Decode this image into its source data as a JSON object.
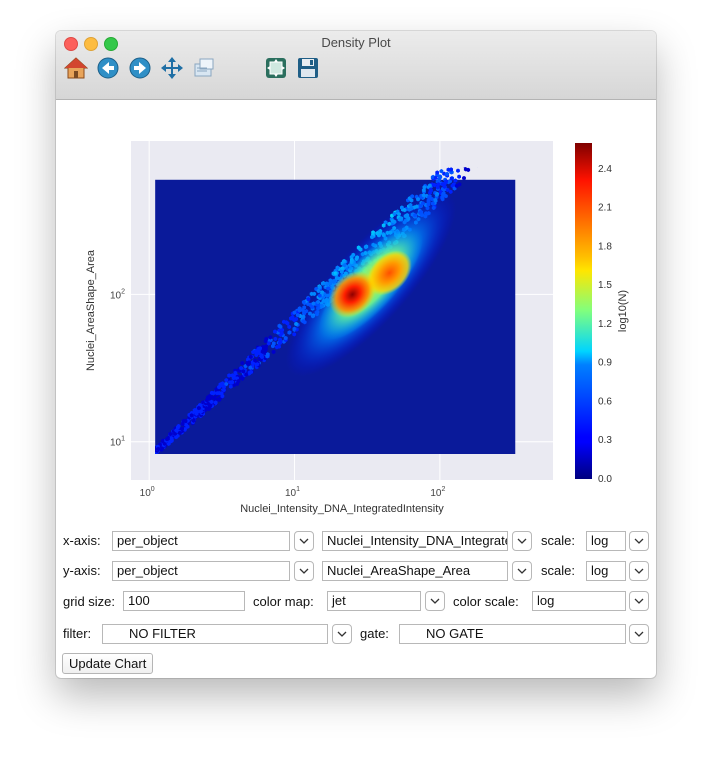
{
  "window": {
    "title": "Density Plot"
  },
  "toolbar": {
    "icons": [
      "home-icon",
      "back-icon",
      "forward-icon",
      "pan-icon",
      "zoom-icon",
      "configure-subplots-icon",
      "save-icon"
    ]
  },
  "chart_data": {
    "type": "heatmap",
    "plot_kind": "hexbin",
    "xlabel": "Nuclei_Intensity_DNA_IntegratedIntensity",
    "ylabel": "Nuclei_AreaShape_Area",
    "xscale": "log",
    "yscale": "log",
    "xlim": [
      0.75,
      600
    ],
    "ylim": [
      5.5,
      1100
    ],
    "x_tick_labels": [
      {
        "value": 1,
        "base": "10",
        "exp": "0"
      },
      {
        "value": 10,
        "base": "10",
        "exp": "1"
      },
      {
        "value": 100,
        "base": "10",
        "exp": "2"
      }
    ],
    "y_tick_labels": [
      {
        "value": 10,
        "base": "10",
        "exp": "1"
      },
      {
        "value": 100,
        "base": "10",
        "exp": "2"
      }
    ],
    "grid": true,
    "colormap": "jet",
    "colorbar": {
      "label": "log10(N)",
      "range": [
        0,
        2.6
      ],
      "ticks": [
        "0.0",
        "0.3",
        "0.6",
        "0.9",
        "1.2",
        "1.5",
        "1.8",
        "2.1",
        "2.4"
      ]
    },
    "data_extent": {
      "x": [
        1.1,
        330
      ],
      "y": [
        8,
        600
      ]
    },
    "density_peaks": [
      {
        "x": 25,
        "y": 100,
        "log10N": 2.5
      },
      {
        "x": 45,
        "y": 140,
        "log10N": 2.0
      }
    ]
  },
  "controls": {
    "xaxis": {
      "label": "x-axis:",
      "table": "per_object",
      "column": "Nuclei_Intensity_DNA_IntegratedIntensity",
      "scale_label": "scale:",
      "scale": "log"
    },
    "yaxis": {
      "label": "y-axis:",
      "table": "per_object",
      "column": "Nuclei_AreaShape_Area",
      "scale_label": "scale:",
      "scale": "log"
    },
    "grid": {
      "label": "grid size:",
      "value": "100"
    },
    "colormap": {
      "label": "color map:",
      "value": "jet"
    },
    "colorscale": {
      "label": "color scale:",
      "value": "log"
    },
    "filter": {
      "label": "filter:",
      "value": "NO FILTER"
    },
    "gate": {
      "label": "gate:",
      "value": "NO GATE"
    },
    "update_button": "Update Chart"
  }
}
